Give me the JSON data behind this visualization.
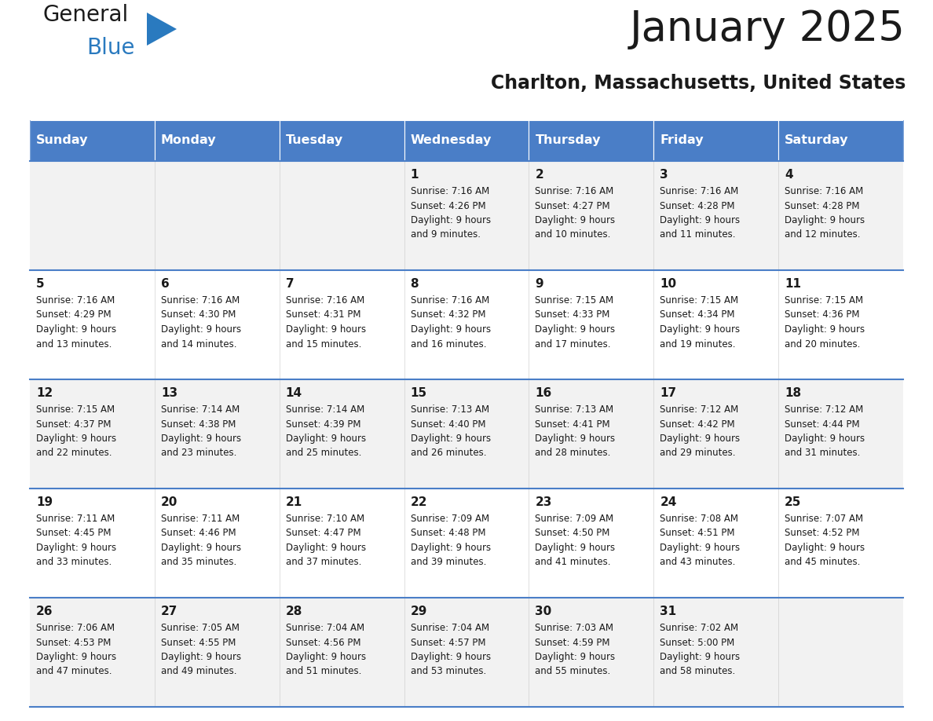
{
  "title": "January 2025",
  "subtitle": "Charlton, Massachusetts, United States",
  "header_bg": "#4a7ec7",
  "header_text_color": "#FFFFFF",
  "cell_bg_even": "#F2F2F2",
  "cell_bg_odd": "#FFFFFF",
  "cell_border_top_color": "#4a7ec7",
  "day_headers": [
    "Sunday",
    "Monday",
    "Tuesday",
    "Wednesday",
    "Thursday",
    "Friday",
    "Saturday"
  ],
  "title_color": "#1a1a1a",
  "subtitle_color": "#1a1a1a",
  "day_num_color": "#1a1a1a",
  "info_color": "#1a1a1a",
  "logo_general_color": "#1a1a1a",
  "logo_blue_color": "#2A7ABF",
  "logo_triangle_color": "#2A7ABF"
}
